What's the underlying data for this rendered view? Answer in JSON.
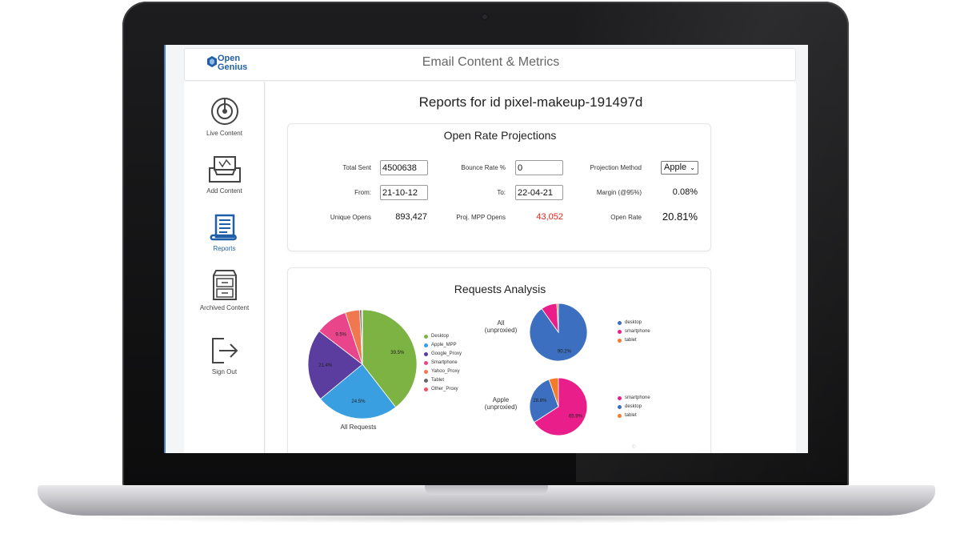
{
  "header": {
    "logo_line1": "Open",
    "logo_line2": "Genius",
    "title": "Email Content & Metrics"
  },
  "sidebar": {
    "items": [
      {
        "label": "Live Content",
        "icon": "target-icon"
      },
      {
        "label": "Add Content",
        "icon": "inbox-tray-icon"
      },
      {
        "label": "Reports",
        "icon": "report-scroll-icon",
        "active": true
      },
      {
        "label": "Archived Content",
        "icon": "filing-cabinet-icon"
      },
      {
        "label": "Sign Out",
        "icon": "sign-out-icon"
      }
    ]
  },
  "main": {
    "report_title": "Reports for id pixel-makeup-191497d"
  },
  "projections": {
    "title": "Open Rate Projections",
    "total_sent_label": "Total Sent",
    "total_sent_value": "4500638",
    "bounce_rate_label": "Bounce Rate %",
    "bounce_rate_value": "0",
    "projection_method_label": "Projection Method",
    "projection_method_value": "Apple",
    "from_label": "From:",
    "from_value": "21-10-12",
    "to_label": "To:",
    "to_value": "22-04-21",
    "margin_label": "Margin (@95%)",
    "margin_value": "0.08%",
    "unique_opens_label": "Unique Opens",
    "unique_opens_value": "893,427",
    "proj_mpp_label": "Proj. MPP Opens",
    "proj_mpp_value": "43,052",
    "open_rate_label": "Open Rate",
    "open_rate_value": "20.81%"
  },
  "requests": {
    "title": "Requests Analysis",
    "watermark": "©",
    "all_requests_caption": "All Requests",
    "all_unproxied_label_1": "All",
    "all_unproxied_label_2": "(unproxied)",
    "apple_unproxied_label_1": "Apple",
    "apple_unproxied_label_2": "(unproxied)"
  },
  "colors": {
    "accent": "#1f5fa8",
    "desktop": "#7cb342",
    "apple_mpp": "#3a9fe0",
    "google_proxy": "#5a3d9e",
    "smartphone": "#e8458b",
    "yahoo_proxy": "#f0784e",
    "tablet": "#666666",
    "other_proxy": "#f25262",
    "desktop_blue": "#3c6fbf",
    "smartphone_pink": "#ea1e8a",
    "tablet_orange": "#f47b2a",
    "red_value": "#e1251b"
  },
  "chart_data": [
    {
      "type": "pie",
      "title": "All Requests",
      "labels": [
        "Desktop",
        "Apple_MPP",
        "Google_Proxy",
        "Smartphone",
        "Yahoo_Proxy",
        "Tablet",
        "Other_Proxy"
      ],
      "values": [
        39.5,
        24.5,
        21.4,
        9.5,
        4.3,
        0.6,
        0.2
      ],
      "slice_labels": [
        "39.5%",
        "24.5%",
        "21.4%",
        "9.5%",
        "",
        "",
        ""
      ],
      "colors": [
        "#7cb342",
        "#3a9fe0",
        "#5a3d9e",
        "#e8458b",
        "#f0784e",
        "#666666",
        "#f25262"
      ],
      "legend": "right"
    },
    {
      "type": "pie",
      "title": "All (unproxied)",
      "labels": [
        "desktop",
        "smartphone",
        "tablet"
      ],
      "values": [
        90.2,
        8.9,
        0.9
      ],
      "slice_labels": [
        "90.2%",
        "",
        ""
      ],
      "colors": [
        "#3c6fbf",
        "#ea1e8a",
        "#f47b2a"
      ],
      "legend": "right"
    },
    {
      "type": "pie",
      "title": "Apple (unproxied)",
      "labels": [
        "smartphone",
        "desktop",
        "tablet"
      ],
      "values": [
        65.9,
        28.8,
        5.3
      ],
      "slice_labels": [
        "65.9%",
        "28.8%",
        ""
      ],
      "colors": [
        "#ea1e8a",
        "#3c6fbf",
        "#f47b2a"
      ],
      "legend": "right"
    }
  ]
}
